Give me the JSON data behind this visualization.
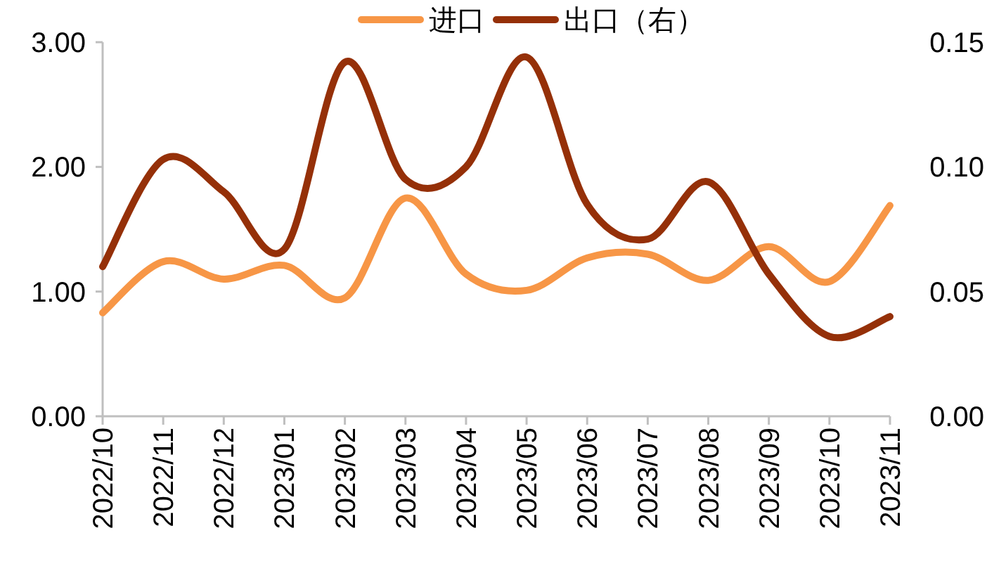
{
  "chart_data": {
    "type": "line",
    "categories": [
      "2022/10",
      "2022/11",
      "2022/12",
      "2023/01",
      "2023/02",
      "2023/03",
      "2023/04",
      "2023/05",
      "2023/06",
      "2023/07",
      "2023/08",
      "2023/09",
      "2023/10",
      "2023/11"
    ],
    "series": [
      {
        "name": "进口",
        "color": "#f79646",
        "values": [
          0.83,
          1.24,
          1.1,
          1.21,
          0.95,
          1.75,
          1.14,
          1.01,
          1.27,
          1.3,
          1.09,
          1.36,
          1.08,
          1.69
        ]
      },
      {
        "name": "出口（右）",
        "color": "#953008",
        "axis": "y2",
        "values": [
          0.06,
          0.103,
          0.09,
          0.067,
          0.142,
          0.095,
          0.1,
          0.144,
          0.085,
          0.071,
          0.094,
          0.057,
          0.032,
          0.04
        ]
      }
    ],
    "ylim": [
      0,
      3
    ],
    "yticks": [
      {
        "value": 0,
        "label": "0.00"
      },
      {
        "value": 1,
        "label": "1.00"
      },
      {
        "value": 2,
        "label": "2.00"
      },
      {
        "value": 3,
        "label": "3.00"
      }
    ],
    "y2lim": [
      0,
      0.15
    ],
    "y2ticks": [
      {
        "value": 0,
        "label": "0.00"
      },
      {
        "value": 0.05,
        "label": "0.05"
      },
      {
        "value": 0.1,
        "label": "0.10"
      },
      {
        "value": 0.15,
        "label": "0.15"
      }
    ],
    "legend": "top",
    "grid": false,
    "marker": "none",
    "line_style": "solid"
  }
}
